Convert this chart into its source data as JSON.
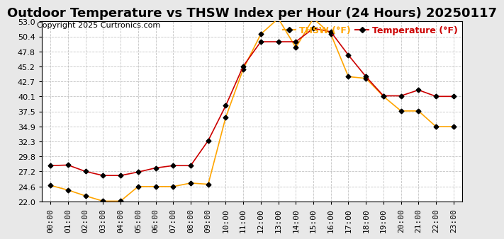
{
  "title": "Outdoor Temperature vs THSW Index per Hour (24 Hours) 20250117",
  "copyright": "Copyright 2025 Curtronics.com",
  "legend_thsw": "THSW (°F)",
  "legend_temp": "Temperature (°F)",
  "hours": [
    "00:00",
    "01:00",
    "02:00",
    "03:00",
    "04:00",
    "05:00",
    "06:00",
    "07:00",
    "08:00",
    "09:00",
    "10:00",
    "11:00",
    "12:00",
    "13:00",
    "14:00",
    "15:00",
    "16:00",
    "17:00",
    "18:00",
    "19:00",
    "20:00",
    "21:00",
    "22:00",
    "23:00"
  ],
  "temperature": [
    28.2,
    28.3,
    27.2,
    26.5,
    26.5,
    27.1,
    27.8,
    28.2,
    28.2,
    32.5,
    38.5,
    45.3,
    49.5,
    49.5,
    49.5,
    51.8,
    51.2,
    47.2,
    43.5,
    40.2,
    40.2,
    41.2,
    40.1,
    40.1
  ],
  "thsw": [
    24.8,
    24.0,
    23.0,
    22.1,
    22.1,
    24.6,
    24.6,
    24.6,
    25.2,
    25.0,
    36.5,
    44.8,
    50.8,
    53.5,
    48.5,
    53.5,
    50.8,
    43.5,
    43.2,
    40.1,
    37.6,
    37.6,
    34.9,
    34.9
  ],
  "thsw_color": "#FFA500",
  "temp_color": "#CC0000",
  "marker_color": "black",
  "bg_color": "#e8e8e8",
  "plot_bg_color": "#ffffff",
  "grid_color": "#aaaaaa",
  "ylim_min": 22.0,
  "ylim_max": 53.0,
  "yticks": [
    22.0,
    24.6,
    27.2,
    29.8,
    32.3,
    34.9,
    37.5,
    40.1,
    42.7,
    45.2,
    47.8,
    50.4,
    53.0
  ],
  "title_fontsize": 13,
  "copyright_fontsize": 8,
  "legend_fontsize": 9,
  "tick_fontsize": 8
}
